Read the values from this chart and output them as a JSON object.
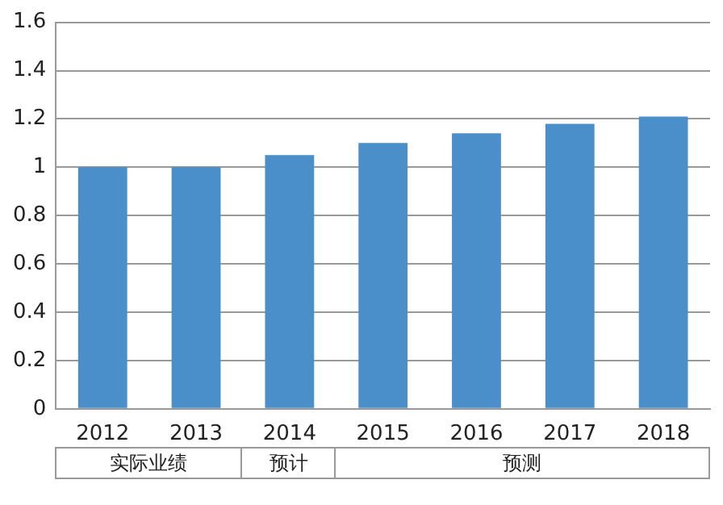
{
  "chart_data": {
    "type": "bar",
    "categories": [
      "2012",
      "2013",
      "2014",
      "2015",
      "2016",
      "2017",
      "2018"
    ],
    "values": [
      1.0,
      1.0,
      1.05,
      1.1,
      1.14,
      1.18,
      1.21
    ],
    "color": "#4a8fc9",
    "ylim": [
      0,
      1.6
    ],
    "yticks": [
      0,
      0.2,
      0.4,
      0.6,
      0.8,
      1,
      1.2,
      1.4,
      1.6
    ],
    "grid": "y",
    "annotations": [
      "实际业绩",
      "预计",
      "预测"
    ]
  }
}
